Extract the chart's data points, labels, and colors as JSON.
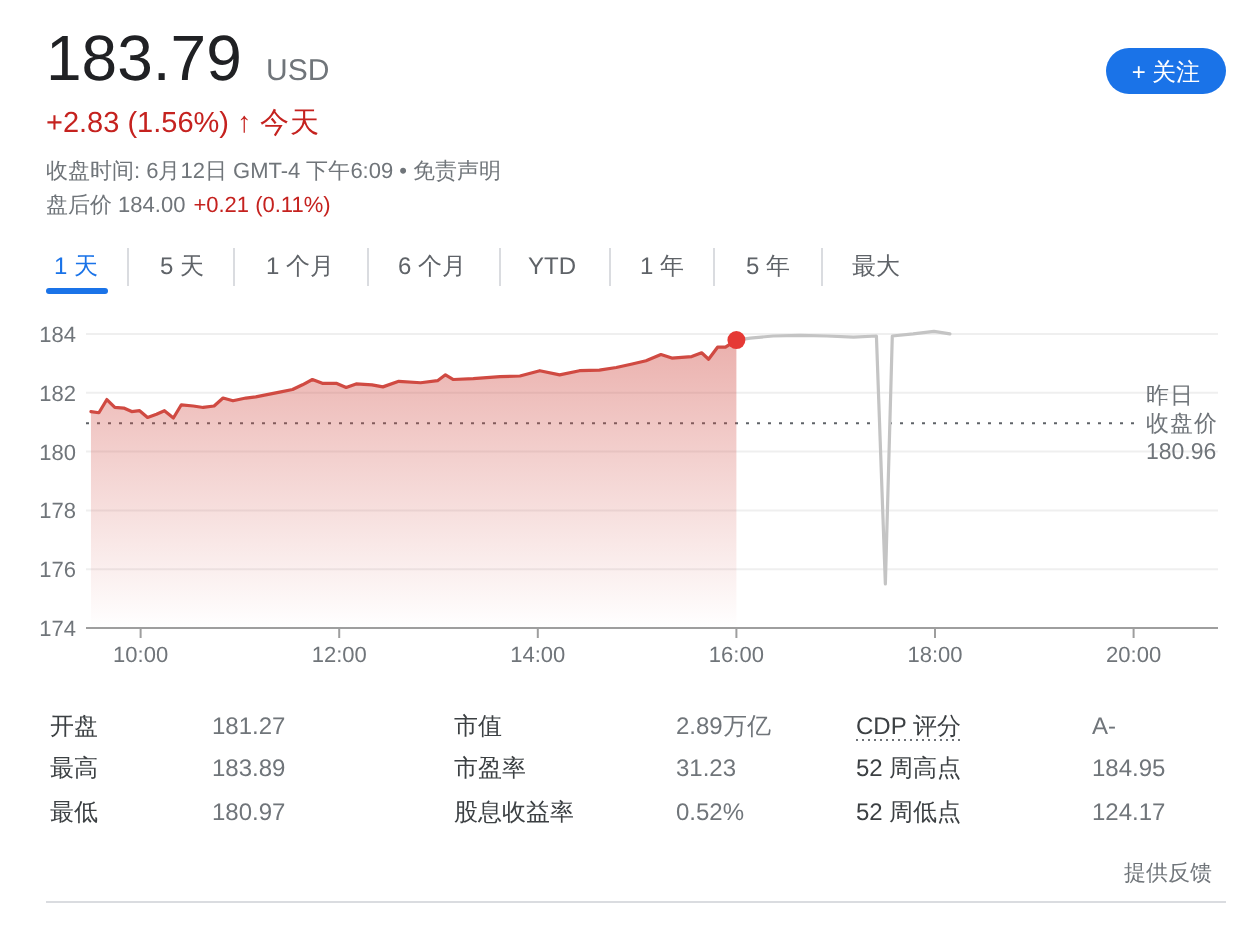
{
  "chart_data": {
    "type": "line",
    "title": "183.79 USD",
    "subtitle": "+2.83 (1.56%) ↑ 今天",
    "annotations": [
      "收盘时间: 6月12日 GMT-4 下午6:09 • 免责声明",
      "盘后价 184.00",
      "+0.21 (0.11%)",
      "1 天",
      "5 天",
      "1 个月",
      "6 个月",
      "YTD",
      "1 年",
      "5 年",
      "最大",
      "+ 关注",
      "开盘",
      "181.27",
      "市值",
      "2.89万亿",
      "CDP 评分",
      "A-",
      "最高",
      "183.89",
      "市盈率",
      "31.23",
      "52 周高点",
      "184.95",
      "最低",
      "180.97",
      "股息收益率",
      "0.52%",
      "52 周低点",
      "124.17",
      "提供反馈"
    ],
    "xlim": [
      9.45,
      20.85
    ],
    "xticks": [
      {
        "value": 10,
        "label": "10:00"
      },
      {
        "value": 12,
        "label": "12:00"
      },
      {
        "value": 14,
        "label": "14:00"
      },
      {
        "value": 16,
        "label": "16:00"
      },
      {
        "value": 18,
        "label": "18:00"
      },
      {
        "value": 20,
        "label": "20:00"
      }
    ],
    "ylim": [
      174,
      184.1
    ],
    "yticks": [
      174,
      176,
      178,
      180,
      182,
      184
    ],
    "grid": "y",
    "ref_lines": [
      {
        "axis": "y",
        "value": 180.96,
        "label": "昨日收盘价 180.96",
        "line_style": "dotted",
        "color": "#5f6368"
      }
    ],
    "series": [
      {
        "type": "area",
        "color": "#d04a42",
        "x": [
          9.5,
          9.58,
          9.66,
          9.74,
          9.83,
          9.91,
          9.99,
          10.07,
          10.16,
          10.24,
          10.33,
          10.41,
          10.53,
          10.63,
          10.74,
          10.83,
          10.93,
          11.06,
          11.16,
          11.26,
          11.4,
          11.53,
          11.63,
          11.73,
          11.83,
          11.97,
          12.07,
          12.17,
          12.33,
          12.44,
          12.6,
          12.82,
          12.99,
          13.07,
          13.15,
          13.35,
          13.62,
          13.82,
          14.02,
          14.22,
          14.42,
          14.62,
          14.79,
          14.95,
          15.09,
          15.24,
          15.35,
          15.55,
          15.65,
          15.72,
          15.81,
          15.89,
          16.0
        ],
        "values": [
          181.36,
          181.32,
          181.77,
          181.5,
          181.48,
          181.36,
          181.39,
          181.16,
          181.27,
          181.39,
          181.14,
          181.59,
          181.55,
          181.5,
          181.55,
          181.82,
          181.73,
          181.82,
          181.86,
          181.93,
          182.02,
          182.11,
          182.27,
          182.45,
          182.32,
          182.32,
          182.18,
          182.3,
          182.27,
          182.2,
          182.39,
          182.34,
          182.41,
          182.61,
          182.45,
          182.48,
          182.55,
          182.57,
          182.75,
          182.61,
          182.75,
          182.77,
          182.86,
          182.98,
          183.09,
          183.3,
          183.18,
          183.23,
          183.36,
          183.14,
          183.55,
          183.55,
          183.79
        ]
      },
      {
        "type": "line",
        "color": "#c4c4c4",
        "x": [
          16.0,
          16.14,
          16.37,
          16.64,
          16.91,
          17.18,
          17.41,
          17.5,
          17.57,
          17.78,
          17.99,
          18.15
        ],
        "values": [
          183.79,
          183.86,
          183.93,
          183.95,
          183.93,
          183.89,
          183.93,
          175.5,
          183.93,
          184.0,
          184.09,
          184.0
        ]
      },
      {
        "type": "scatter",
        "marker": "circle",
        "color": "#e53935",
        "x": [
          16.0
        ],
        "values": [
          183.79
        ]
      }
    ]
  }
}
